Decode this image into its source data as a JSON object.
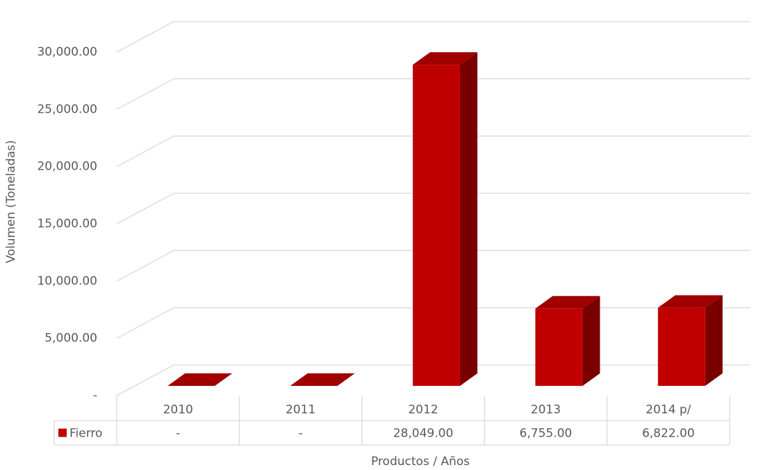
{
  "chart_data": {
    "type": "bar3d",
    "x_label": "Productos / Años",
    "y_label": "Volumen (Toneladas)",
    "categories": [
      "2010",
      "2011",
      "2012",
      "2013",
      "2014 p/"
    ],
    "series": [
      {
        "name": "Fierro",
        "color": "#c00000",
        "values": [
          0,
          0,
          28049,
          6755,
          6822
        ],
        "value_labels": [
          "-",
          "-",
          "28,049.00",
          "6,755.00",
          "6,822.00"
        ]
      }
    ],
    "ylim": [
      0,
      30000
    ],
    "yticks": [
      {
        "value": 0,
        "label": "-"
      },
      {
        "value": 5000,
        "label": "5,000.00"
      },
      {
        "value": 10000,
        "label": "10,000.00"
      },
      {
        "value": 15000,
        "label": "15,000.00"
      },
      {
        "value": 20000,
        "label": "20,000.00"
      },
      {
        "value": 25000,
        "label": "25,000.00"
      },
      {
        "value": 30000,
        "label": "30,000.00"
      }
    ],
    "grid": true
  }
}
